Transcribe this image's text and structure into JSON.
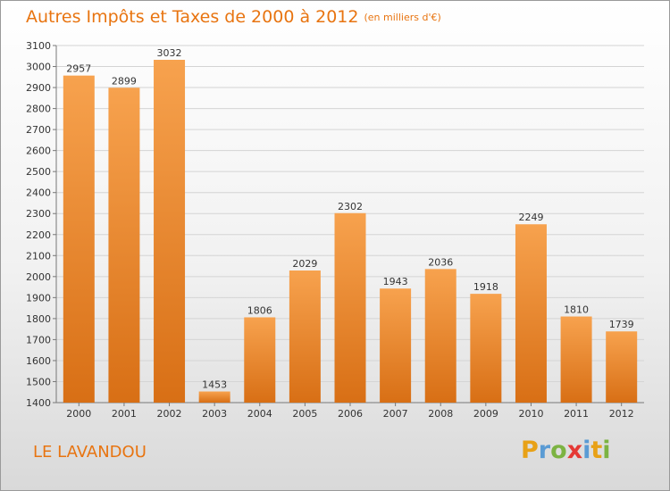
{
  "chart_data": {
    "type": "bar",
    "title": "Autres Impôts et Taxes de 2000 à 2012",
    "subtitle": "(en milliers d'€)",
    "categories": [
      "2000",
      "2001",
      "2002",
      "2003",
      "2004",
      "2005",
      "2006",
      "2007",
      "2008",
      "2009",
      "2010",
      "2011",
      "2012"
    ],
    "values": [
      2957,
      2899,
      3032,
      1453,
      1806,
      2029,
      2302,
      1943,
      2036,
      1918,
      2249,
      1810,
      1739
    ],
    "ylim": [
      1400,
      3100
    ],
    "yticks": [
      1400,
      1500,
      1600,
      1700,
      1800,
      1900,
      2000,
      2100,
      2200,
      2300,
      2400,
      2500,
      2600,
      2700,
      2800,
      2900,
      3000,
      3100
    ],
    "grid": true,
    "xlabel": "",
    "ylabel": "",
    "bar_color_top": "#f7a24e",
    "bar_color_bottom": "#d86f15"
  },
  "commune": "LE LAVANDOU",
  "logo": {
    "letters": [
      "P",
      "r",
      "o",
      "x",
      "i",
      "t",
      "i"
    ],
    "colors": [
      "#e8a116",
      "#5a9bd4",
      "#7cb342",
      "#e53935",
      "#5a9bd4",
      "#e8a116",
      "#7cb342"
    ]
  },
  "colors": {
    "accent": "#e87410"
  }
}
